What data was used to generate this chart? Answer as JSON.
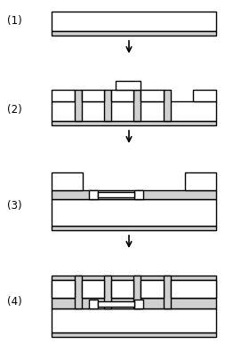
{
  "background": "#ffffff",
  "label_color": "#000000",
  "line_color": "#000000",
  "fill_light": "#d0d0d0",
  "fill_white": "#ffffff",
  "labels": [
    "(1)",
    "(2)",
    "(3)",
    "(4)"
  ],
  "arrow_color": "#000000",
  "lw": 1.0,
  "fig_width": 2.62,
  "fig_height": 3.87,
  "dpi": 100
}
